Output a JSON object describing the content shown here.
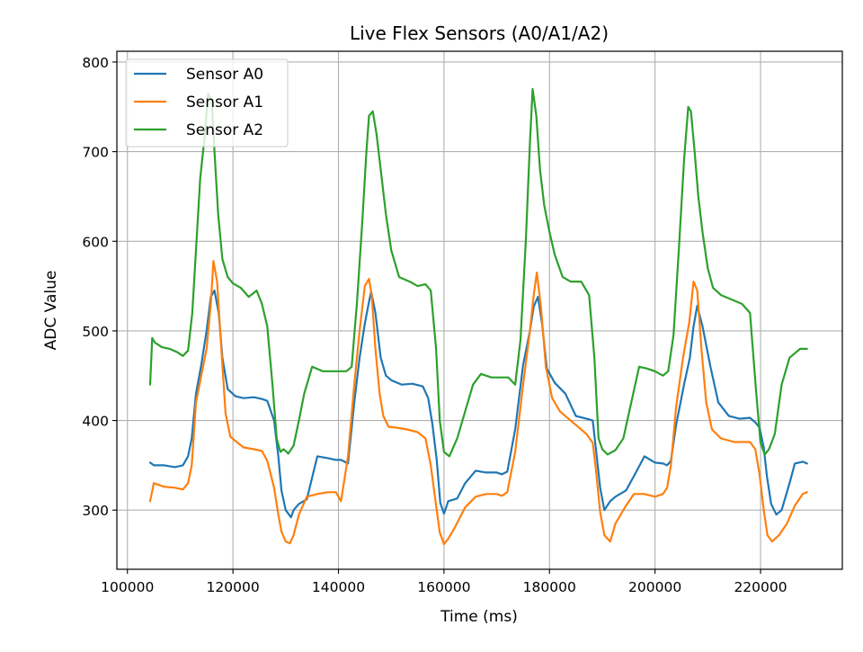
{
  "chart_data": {
    "type": "line",
    "title": "Live Flex Sensors (A0/A1/A2)",
    "xlabel": "Time (ms)",
    "ylabel": "ADC Value",
    "xlim": [
      98000,
      235500
    ],
    "ylim": [
      234,
      812
    ],
    "xticks": [
      100000,
      120000,
      140000,
      160000,
      180000,
      200000,
      220000
    ],
    "yticks": [
      300,
      400,
      500,
      600,
      700,
      800
    ],
    "grid": true,
    "legend_position": "top-left",
    "series": [
      {
        "name": "Sensor A0",
        "color": "#1f77b4",
        "x": [
          104300,
          105000,
          107000,
          109000,
          110500,
          111500,
          112200,
          113000,
          114000,
          115000,
          115800,
          116500,
          117300,
          118000,
          119000,
          120500,
          122000,
          124000,
          125500,
          126500,
          127800,
          128600,
          129200,
          130000,
          131000,
          131500,
          132500,
          134000,
          136000,
          138000,
          139500,
          140500,
          141800,
          143000,
          144000,
          145000,
          145700,
          146200,
          147000,
          148000,
          149000,
          150000,
          152000,
          154000,
          156000,
          157000,
          157800,
          158600,
          159300,
          160000,
          160800,
          162500,
          164000,
          166000,
          168000,
          170000,
          171000,
          172000,
          173500,
          175000,
          176300,
          177000,
          177800,
          178600,
          179500,
          181000,
          183000,
          185000,
          187000,
          188200,
          188800,
          189600,
          190400,
          191500,
          192500,
          194500,
          196000,
          198000,
          200000,
          201500,
          202300,
          203000,
          204000,
          205500,
          206600,
          207300,
          208000,
          209000,
          210500,
          212000,
          214000,
          216000,
          218000,
          219000,
          219800,
          220600,
          221200,
          222000,
          223000,
          224000,
          225500,
          226500,
          228000,
          228800
        ],
        "values": [
          353,
          350,
          350,
          348,
          350,
          360,
          380,
          430,
          462,
          500,
          538,
          545,
          520,
          470,
          435,
          427,
          425,
          426,
          424,
          422,
          400,
          360,
          322,
          300,
          292,
          300,
          307,
          312,
          360,
          358,
          356,
          356,
          352,
          420,
          470,
          508,
          530,
          544,
          520,
          470,
          450,
          445,
          440,
          441,
          438,
          425,
          396,
          357,
          308,
          296,
          310,
          313,
          330,
          344,
          342,
          342,
          340,
          343,
          390,
          462,
          500,
          527,
          538,
          508,
          458,
          442,
          430,
          405,
          402,
          400,
          368,
          325,
          300,
          310,
          315,
          322,
          338,
          360,
          353,
          352,
          350,
          355,
          395,
          440,
          470,
          505,
          528,
          505,
          460,
          420,
          405,
          402,
          403,
          398,
          392,
          370,
          338,
          307,
          295,
          300,
          330,
          352,
          354,
          352
        ]
      },
      {
        "name": "Sensor A1",
        "color": "#ff7f0e",
        "x": [
          104300,
          105000,
          107000,
          109000,
          110500,
          111500,
          112200,
          113000,
          114000,
          115000,
          115800,
          116300,
          117000,
          117800,
          118600,
          119500,
          120500,
          122000,
          124000,
          125500,
          126500,
          127800,
          128600,
          129200,
          130000,
          130800,
          131500,
          132500,
          134000,
          136000,
          138000,
          139500,
          140500,
          141800,
          143000,
          144000,
          145000,
          145800,
          146300,
          147000,
          147800,
          148500,
          149500,
          151000,
          153000,
          155000,
          156500,
          157500,
          158500,
          159200,
          160000,
          160800,
          162000,
          164000,
          166000,
          168000,
          170000,
          171000,
          172000,
          173500,
          175000,
          176300,
          177000,
          177600,
          178400,
          179300,
          180500,
          182000,
          185000,
          187000,
          188200,
          188800,
          189600,
          190400,
          191500,
          192500,
          194500,
          196000,
          198000,
          200000,
          201500,
          202300,
          203000,
          204000,
          205300,
          206500,
          207300,
          208000,
          208800,
          209700,
          210800,
          212500,
          215000,
          218000,
          219000,
          219800,
          220600,
          221300,
          222200,
          223500,
          225000,
          226500,
          228000,
          228800
        ],
        "values": [
          310,
          330,
          326,
          325,
          323,
          330,
          350,
          420,
          450,
          480,
          530,
          578,
          555,
          480,
          408,
          382,
          377,
          370,
          368,
          366,
          355,
          325,
          295,
          276,
          265,
          263,
          272,
          295,
          315,
          318,
          320,
          320,
          310,
          360,
          440,
          500,
          550,
          558,
          540,
          480,
          430,
          405,
          393,
          392,
          390,
          387,
          380,
          350,
          305,
          275,
          262,
          268,
          280,
          303,
          315,
          318,
          318,
          316,
          320,
          365,
          440,
          500,
          540,
          565,
          525,
          460,
          425,
          410,
          395,
          385,
          375,
          345,
          298,
          272,
          265,
          285,
          305,
          318,
          318,
          315,
          318,
          325,
          350,
          415,
          470,
          510,
          555,
          545,
          480,
          420,
          390,
          380,
          376,
          376,
          368,
          340,
          300,
          272,
          265,
          272,
          285,
          305,
          318,
          320
        ]
      },
      {
        "name": "Sensor A2",
        "color": "#2ca02c",
        "x": [
          104300,
          104700,
          105200,
          106500,
          108000,
          109500,
          110500,
          111500,
          112300,
          113000,
          113800,
          114700,
          115300,
          116000,
          116500,
          117200,
          118000,
          119000,
          120000,
          121500,
          123000,
          124500,
          125500,
          126500,
          127500,
          128300,
          129000,
          129600,
          130500,
          131500,
          132500,
          133500,
          135000,
          137000,
          139000,
          140500,
          141500,
          142500,
          143500,
          144500,
          145300,
          145800,
          146500,
          147200,
          148000,
          149000,
          150000,
          151500,
          153500,
          155000,
          156500,
          157500,
          158500,
          159200,
          160000,
          161000,
          162500,
          164000,
          165500,
          167000,
          169000,
          171000,
          172200,
          173500,
          174500,
          175500,
          176300,
          176800,
          177500,
          178200,
          179000,
          180000,
          181000,
          182500,
          184000,
          186000,
          187500,
          188500,
          189300,
          190000,
          191000,
          192500,
          194000,
          195500,
          197000,
          198500,
          200000,
          201500,
          202500,
          203500,
          204500,
          205500,
          206300,
          206800,
          207500,
          208200,
          209000,
          210000,
          211000,
          212500,
          214500,
          216500,
          218000,
          219200,
          220000,
          220800,
          221600,
          222700,
          224000,
          225500,
          226500,
          227500,
          228800
        ],
        "values": [
          440,
          492,
          487,
          482,
          480,
          476,
          472,
          478,
          520,
          590,
          670,
          720,
          765,
          755,
          700,
          630,
          580,
          560,
          553,
          548,
          538,
          545,
          530,
          505,
          440,
          380,
          365,
          368,
          363,
          372,
          400,
          430,
          460,
          455,
          455,
          455,
          455,
          460,
          530,
          620,
          700,
          740,
          745,
          720,
          680,
          630,
          590,
          560,
          555,
          550,
          552,
          545,
          480,
          400,
          365,
          360,
          380,
          410,
          440,
          452,
          448,
          448,
          448,
          440,
          490,
          600,
          710,
          770,
          740,
          680,
          640,
          610,
          585,
          560,
          555,
          555,
          540,
          470,
          380,
          368,
          362,
          367,
          380,
          420,
          460,
          458,
          455,
          450,
          455,
          495,
          590,
          690,
          750,
          745,
          700,
          650,
          610,
          570,
          548,
          540,
          535,
          530,
          520,
          430,
          375,
          362,
          368,
          385,
          440,
          470,
          475,
          480,
          480
        ]
      }
    ]
  }
}
